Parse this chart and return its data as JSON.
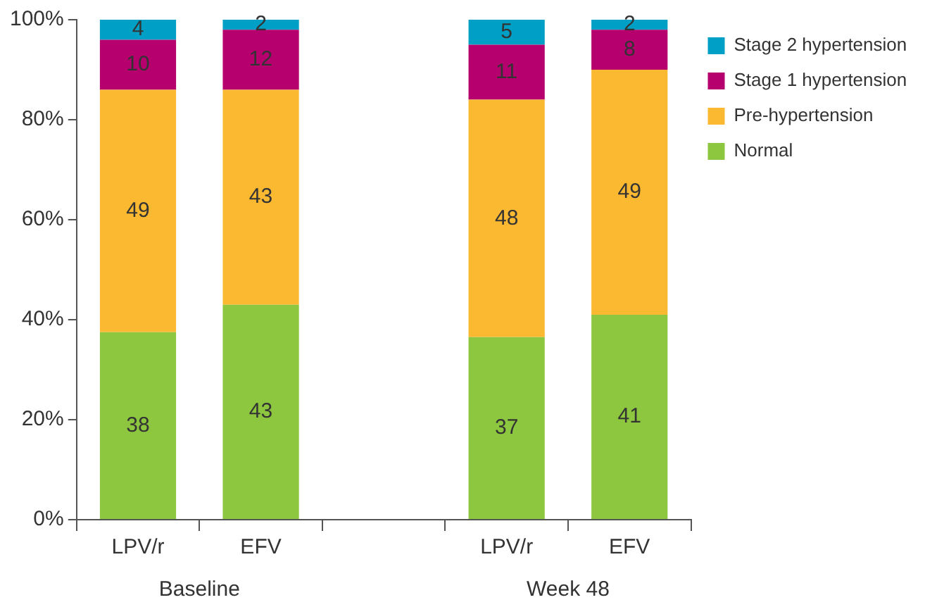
{
  "chart_data": {
    "type": "bar",
    "stacked": true,
    "categories": [
      "LPV/r",
      "EFV",
      null,
      "LPV/r",
      "EFV"
    ],
    "series": [
      {
        "name": "Normal",
        "color": "#8dc63f",
        "values": [
          37.5,
          43,
          null,
          36.5,
          41
        ],
        "value_labels": [
          "38",
          "43",
          null,
          "37",
          "41"
        ]
      },
      {
        "name": "Pre-hypertension",
        "color": "#fbb932",
        "values": [
          48.5,
          43,
          null,
          47.5,
          49
        ],
        "value_labels": [
          "49",
          "43",
          null,
          "48",
          "49"
        ]
      },
      {
        "name": "Stage 1 hypertension",
        "color": "#b5006e",
        "values": [
          10,
          12,
          null,
          11,
          8
        ],
        "value_labels": [
          "10",
          "12",
          null,
          "11",
          "8"
        ]
      },
      {
        "name": "Stage 2 hypertension",
        "color": "#00a0c6",
        "values": [
          4,
          2,
          null,
          5,
          2
        ],
        "value_labels": [
          "4",
          "2",
          null,
          "5",
          "2"
        ]
      }
    ],
    "ylim": [
      0,
      100
    ],
    "yticks": [
      {
        "value": 0,
        "label": "0%"
      },
      {
        "value": 20,
        "label": "20%"
      },
      {
        "value": 40,
        "label": "40%"
      },
      {
        "value": 60,
        "label": "60%"
      },
      {
        "value": 80,
        "label": "80%"
      },
      {
        "value": 100,
        "label": "100%"
      }
    ],
    "annotations": [
      "Baseline",
      "Week 48"
    ],
    "grid": false,
    "legend": "right"
  }
}
